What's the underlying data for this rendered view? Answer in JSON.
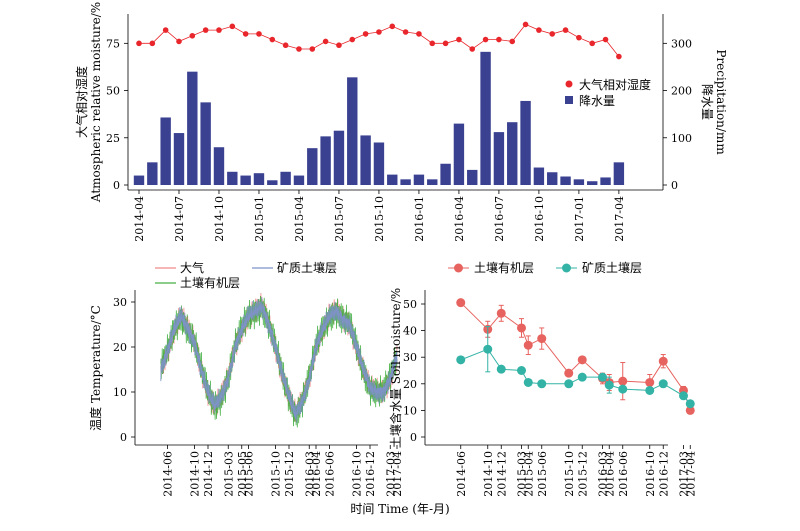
{
  "figure": {
    "xlabel": "时间 Time (年-月)"
  },
  "chart_data": [
    {
      "type": "bar",
      "panel": "top",
      "ylabel_left": [
        "大气相对湿度",
        "Atmospheric relative moisture/%"
      ],
      "ylabel_right": [
        "降水量",
        "Precipitation/mm"
      ],
      "ylim_left": [
        0,
        90
      ],
      "ylim_right": [
        0,
        360
      ],
      "yticks_left": [
        "0",
        "25",
        "50",
        "75"
      ],
      "yticks_right": [
        "0",
        "100",
        "200",
        "300"
      ],
      "categories": [
        "2014-04",
        "2014-05",
        "2014-06",
        "2014-07",
        "2014-08",
        "2014-09",
        "2014-10",
        "2014-11",
        "2014-12",
        "2015-01",
        "2015-02",
        "2015-03",
        "2015-04",
        "2015-05",
        "2015-06",
        "2015-07",
        "2015-08",
        "2015-09",
        "2015-10",
        "2015-11",
        "2015-12",
        "2016-01",
        "2016-02",
        "2016-03",
        "2016-04",
        "2016-05",
        "2016-06",
        "2016-07",
        "2016-08",
        "2016-09",
        "2016-10",
        "2016-11",
        "2016-12",
        "2017-01",
        "2017-02",
        "2017-03",
        "2017-04"
      ],
      "xtick_labels": [
        "2014-04",
        "2014-07",
        "2014-10",
        "2015-01",
        "2015-04",
        "2015-07",
        "2015-10",
        "2016-01",
        "2016-04",
        "2016-07",
        "2016-10",
        "2017-01",
        "2017-04"
      ],
      "series": [
        {
          "name": "降水量",
          "axis": "right",
          "color": "#3a4191",
          "values": [
            20,
            48,
            143,
            110,
            240,
            175,
            80,
            28,
            20,
            25,
            10,
            28,
            20,
            78,
            103,
            115,
            228,
            105,
            90,
            22,
            12,
            22,
            12,
            45,
            130,
            32,
            282,
            112,
            133,
            178,
            37,
            27,
            18,
            12,
            8,
            16,
            48
          ]
        },
        {
          "name": "大气相对湿度",
          "axis": "left",
          "color": "#e8262b",
          "values": [
            75,
            75,
            82,
            76,
            79,
            82,
            82,
            84,
            80,
            80,
            77,
            74,
            72,
            72,
            76,
            74,
            77,
            80,
            81,
            84,
            81,
            80,
            75,
            75,
            77,
            72,
            77,
            77,
            76,
            85,
            82,
            80,
            82,
            78,
            75,
            77,
            68
          ]
        }
      ],
      "legend": [
        "大气相对湿度",
        "降水量"
      ],
      "legend_position": "right"
    },
    {
      "type": "line",
      "panel": "bottom-left",
      "ylabel": "温度 Temperature/°C",
      "ylim": [
        0,
        32
      ],
      "yticks": [
        "0",
        "10",
        "20",
        "30"
      ],
      "xtick_labels": [
        "2014-06",
        "2014-10",
        "2014-12",
        "2015-03",
        "2015-05",
        "2015-06",
        "2015-10",
        "2015-12",
        "2016-03",
        "2016-04",
        "2016-06",
        "2016-10",
        "2016-12",
        "2017-03",
        "2017-04"
      ],
      "series_key_points": [
        [
          "2014-05",
          15
        ],
        [
          "2014-06",
          19
        ],
        [
          "2014-07",
          24
        ],
        [
          "2014-08",
          27
        ],
        [
          "2014-09",
          24
        ],
        [
          "2014-10",
          21
        ],
        [
          "2014-11",
          15
        ],
        [
          "2014-12",
          10
        ],
        [
          "2015-01",
          7
        ],
        [
          "2015-02",
          9
        ],
        [
          "2015-03",
          13
        ],
        [
          "2015-04",
          20
        ],
        [
          "2015-05",
          24
        ],
        [
          "2015-06",
          27
        ],
        [
          "2015-07",
          28
        ],
        [
          "2015-08",
          29
        ],
        [
          "2015-09",
          25
        ],
        [
          "2015-10",
          20
        ],
        [
          "2015-11",
          14
        ],
        [
          "2015-12",
          9
        ],
        [
          "2016-01",
          5
        ],
        [
          "2016-02",
          8
        ],
        [
          "2016-03",
          13
        ],
        [
          "2016-04",
          20
        ],
        [
          "2016-05",
          24
        ],
        [
          "2016-06",
          27
        ],
        [
          "2016-07",
          28
        ],
        [
          "2016-08",
          26
        ],
        [
          "2016-09",
          25
        ],
        [
          "2016-10",
          20
        ],
        [
          "2016-11",
          15
        ],
        [
          "2016-12",
          11
        ],
        [
          "2017-01",
          10
        ],
        [
          "2017-02",
          10
        ],
        [
          "2017-03",
          13
        ],
        [
          "2017-04",
          18
        ]
      ],
      "series": [
        {
          "name": "大气",
          "color": "#f08a8a"
        },
        {
          "name": "土壤有机层",
          "color": "#45b045"
        },
        {
          "name": "矿质土壤层",
          "color": "#7f92c6"
        }
      ],
      "legend_position": "top-left"
    },
    {
      "type": "scatter",
      "panel": "bottom-right",
      "ylabel": "土壤含水量 Soil moisture/%",
      "ylim": [
        0,
        52
      ],
      "yticks": [
        "0",
        "10",
        "20",
        "30",
        "40",
        "50"
      ],
      "xtick_labels": [
        "2014-06",
        "2014-10",
        "2014-12",
        "2015-03",
        "2015-04",
        "2015-06",
        "2015-10",
        "2015-12",
        "2016-03",
        "2016-04",
        "2016-06",
        "2016-10",
        "2016-12",
        "2017-03",
        "2017-04"
      ],
      "series": [
        {
          "name": "土壤有机层",
          "color": "#e7635f",
          "x": [
            "2014-06",
            "2014-10",
            "2014-12",
            "2015-03",
            "2015-04",
            "2015-06",
            "2015-10",
            "2015-12",
            "2016-03",
            "2016-04",
            "2016-06",
            "2016-10",
            "2016-12",
            "2017-03",
            "2017-04"
          ],
          "y": [
            50.5,
            40.5,
            46.5,
            41,
            34.5,
            37,
            24,
            29,
            22,
            20.5,
            21,
            20.5,
            28.5,
            17.5,
            10
          ],
          "err": [
            0,
            3,
            3,
            3.5,
            3.5,
            4,
            0,
            1,
            2,
            3,
            7,
            3,
            2.5,
            1.5,
            1
          ]
        },
        {
          "name": "矿质土壤层",
          "color": "#33b3a6",
          "x": [
            "2014-06",
            "2014-10",
            "2014-12",
            "2015-03",
            "2015-04",
            "2015-06",
            "2015-10",
            "2015-12",
            "2016-03",
            "2016-04",
            "2016-06",
            "2016-10",
            "2016-12",
            "2017-03",
            "2017-04"
          ],
          "y": [
            29,
            33,
            25.5,
            25,
            20.5,
            20,
            20,
            22.5,
            22.5,
            19.5,
            18,
            17.5,
            20,
            15.5,
            12.5
          ],
          "err": [
            0,
            8.5,
            1,
            0.5,
            0.5,
            0.5,
            0.5,
            0.5,
            0.5,
            3,
            1,
            0.5,
            0.5,
            0.5,
            0.5
          ]
        }
      ],
      "legend_position": "top"
    }
  ]
}
